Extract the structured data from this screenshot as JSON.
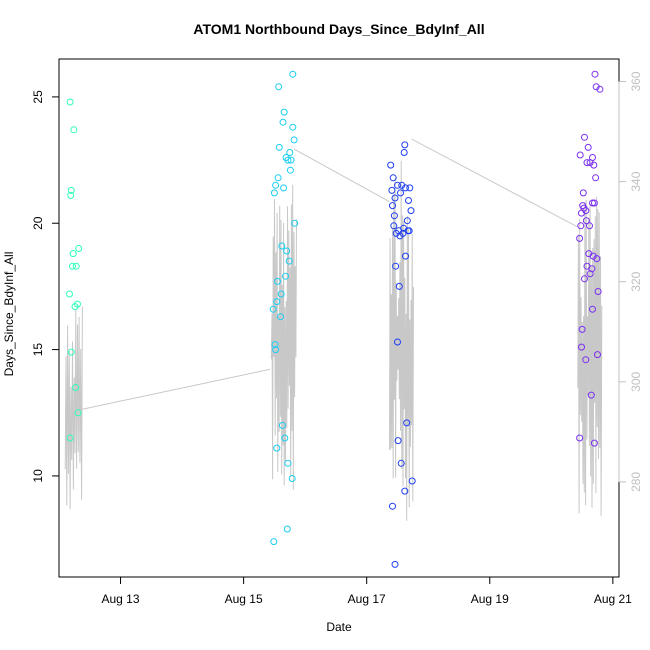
{
  "chart_data": {
    "type": "scatter",
    "title": "ATOM1 Northbound Days_Since_BdyInf_All",
    "xlabel": "Date",
    "ylabel": "Days_Since_BdyInf_All",
    "x_ticks": [
      "Aug 13",
      "Aug 15",
      "Aug 17",
      "Aug 19",
      "Aug 21"
    ],
    "x_tick_values": [
      13.0,
      15.0,
      17.0,
      19.0,
      21.0
    ],
    "xlim": [
      12.0,
      21.1
    ],
    "ylim": [
      6.0,
      26.5
    ],
    "y_ticks": [
      10,
      15,
      20,
      25
    ],
    "y2_ticks": [
      280,
      300,
      320,
      340,
      360
    ],
    "y2lim": [
      261.0,
      364.5
    ],
    "grid": false,
    "series": [
      {
        "color": "#2effb8",
        "points": [
          [
            12.18,
            24.8
          ],
          [
            12.24,
            23.7
          ],
          [
            12.2,
            21.3
          ],
          [
            12.19,
            21.1
          ],
          [
            12.32,
            19.0
          ],
          [
            12.23,
            18.8
          ],
          [
            12.28,
            18.3
          ],
          [
            12.22,
            18.3
          ],
          [
            12.17,
            17.2
          ],
          [
            12.3,
            16.8
          ],
          [
            12.26,
            16.7
          ],
          [
            12.2,
            14.9
          ],
          [
            12.27,
            13.5
          ],
          [
            12.31,
            12.5
          ],
          [
            12.18,
            11.5
          ]
        ]
      },
      {
        "color": "#1ccdf2",
        "points": [
          [
            15.8,
            25.9
          ],
          [
            15.57,
            25.4
          ],
          [
            15.66,
            24.4
          ],
          [
            15.64,
            24.0
          ],
          [
            15.8,
            23.8
          ],
          [
            15.82,
            23.3
          ],
          [
            15.58,
            23.0
          ],
          [
            15.75,
            22.8
          ],
          [
            15.72,
            22.5
          ],
          [
            15.77,
            22.5
          ],
          [
            15.69,
            22.6
          ],
          [
            15.76,
            22.1
          ],
          [
            15.56,
            21.8
          ],
          [
            15.52,
            21.5
          ],
          [
            15.65,
            21.4
          ],
          [
            15.5,
            21.2
          ],
          [
            15.83,
            20.0
          ],
          [
            15.62,
            19.1
          ],
          [
            15.7,
            18.9
          ],
          [
            15.74,
            18.5
          ],
          [
            15.68,
            17.9
          ],
          [
            15.55,
            17.7
          ],
          [
            15.61,
            17.2
          ],
          [
            15.54,
            16.9
          ],
          [
            15.48,
            16.6
          ],
          [
            15.6,
            16.3
          ],
          [
            15.51,
            15.2
          ],
          [
            15.52,
            15.0
          ],
          [
            15.63,
            12.0
          ],
          [
            15.67,
            11.5
          ],
          [
            15.54,
            11.1
          ],
          [
            15.72,
            10.5
          ],
          [
            15.79,
            9.9
          ],
          [
            15.71,
            7.9
          ],
          [
            15.49,
            7.4
          ]
        ]
      },
      {
        "color": "#1f3ff0",
        "points": [
          [
            17.39,
            22.3
          ],
          [
            17.62,
            23.1
          ],
          [
            17.61,
            22.8
          ],
          [
            17.43,
            21.8
          ],
          [
            17.57,
            21.5
          ],
          [
            17.63,
            21.4
          ],
          [
            17.5,
            21.5
          ],
          [
            17.7,
            21.4
          ],
          [
            17.41,
            21.3
          ],
          [
            17.46,
            21.0
          ],
          [
            17.55,
            21.2
          ],
          [
            17.42,
            20.7
          ],
          [
            17.68,
            20.9
          ],
          [
            17.45,
            20.3
          ],
          [
            17.72,
            20.5
          ],
          [
            17.66,
            20.1
          ],
          [
            17.44,
            19.9
          ],
          [
            17.6,
            19.8
          ],
          [
            17.69,
            19.7
          ],
          [
            17.67,
            19.7
          ],
          [
            17.52,
            19.7
          ],
          [
            17.59,
            19.6
          ],
          [
            17.54,
            19.5
          ],
          [
            17.48,
            19.6
          ],
          [
            17.63,
            18.7
          ],
          [
            17.47,
            18.3
          ],
          [
            17.53,
            17.5
          ],
          [
            17.5,
            15.3
          ],
          [
            17.65,
            12.1
          ],
          [
            17.51,
            11.4
          ],
          [
            17.56,
            10.5
          ],
          [
            17.74,
            9.8
          ],
          [
            17.62,
            9.4
          ],
          [
            17.42,
            8.8
          ],
          [
            17.46,
            6.5
          ]
        ]
      },
      {
        "color": "#7a2ff0",
        "points": [
          [
            20.71,
            25.9
          ],
          [
            20.73,
            25.4
          ],
          [
            20.79,
            25.3
          ],
          [
            20.54,
            23.4
          ],
          [
            20.6,
            23.0
          ],
          [
            20.47,
            22.7
          ],
          [
            20.67,
            22.6
          ],
          [
            20.63,
            22.4
          ],
          [
            20.69,
            22.3
          ],
          [
            20.58,
            22.4
          ],
          [
            20.72,
            21.8
          ],
          [
            20.52,
            21.2
          ],
          [
            20.7,
            20.8
          ],
          [
            20.67,
            20.8
          ],
          [
            20.51,
            20.7
          ],
          [
            20.49,
            20.4
          ],
          [
            20.53,
            20.6
          ],
          [
            20.56,
            20.5
          ],
          [
            20.48,
            19.9
          ],
          [
            20.62,
            19.9
          ],
          [
            20.57,
            20.1
          ],
          [
            20.46,
            19.4
          ],
          [
            20.61,
            18.8
          ],
          [
            20.68,
            18.7
          ],
          [
            20.58,
            18.3
          ],
          [
            20.74,
            18.6
          ],
          [
            20.63,
            18.0
          ],
          [
            20.66,
            18.2
          ],
          [
            20.54,
            17.8
          ],
          [
            20.76,
            17.3
          ],
          [
            20.67,
            16.6
          ],
          [
            20.5,
            15.8
          ],
          [
            20.49,
            15.1
          ],
          [
            20.56,
            14.6
          ],
          [
            20.75,
            14.8
          ],
          [
            20.65,
            13.2
          ],
          [
            20.46,
            11.5
          ],
          [
            20.7,
            11.3
          ]
        ]
      }
    ],
    "second_axis_line": {
      "color": "#c8c8c8",
      "axis": "right",
      "segments": [
        {
          "x_start": 12.1,
          "x_end": 12.38,
          "y_min": 273,
          "y_max": 316,
          "points": 22
        },
        {
          "x_start": 15.45,
          "x_end": 15.86,
          "y_min": 277,
          "y_max": 342,
          "points": 40
        },
        {
          "x_start": 17.37,
          "x_end": 17.76,
          "y_min": 272,
          "y_max": 345,
          "points": 40
        },
        {
          "x_start": 20.43,
          "x_end": 20.82,
          "y_min": 273,
          "y_max": 337,
          "points": 38
        }
      ],
      "bridges": [
        [
          12.37,
          294.5,
          15.43,
          302.5
        ],
        [
          15.82,
          346.5,
          17.37,
          336.0
        ],
        [
          17.73,
          348.5,
          20.42,
          331.0
        ]
      ]
    }
  }
}
